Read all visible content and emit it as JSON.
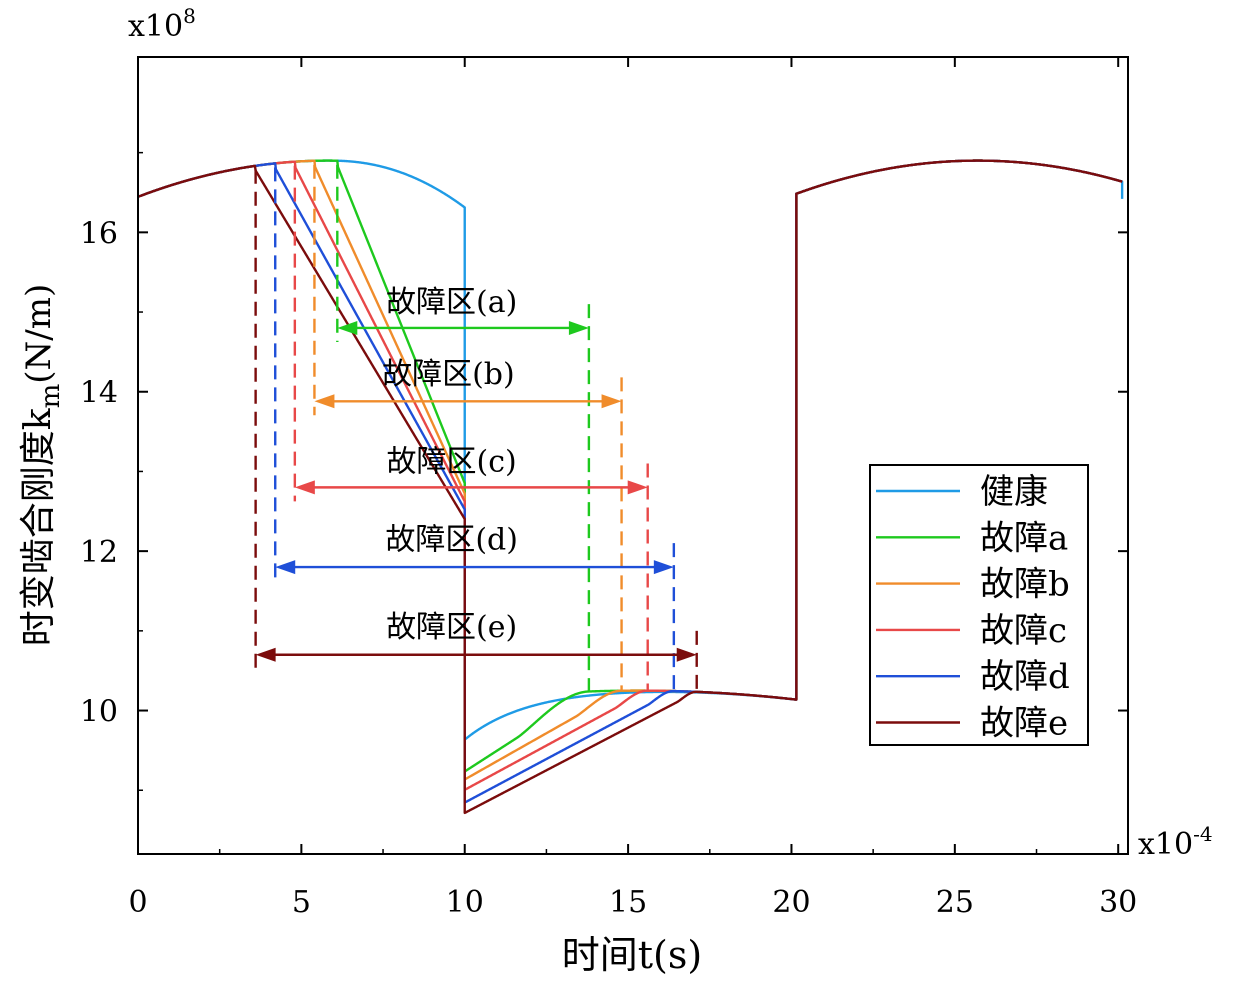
{
  "chart_data": {
    "type": "line",
    "title": "",
    "xlabel": "时间t(s)",
    "ylabel": "时变啮合刚度k",
    "ylabel_sub": "m",
    "ylabel_unit": "(N/m)",
    "x_multiplier_base": "x10",
    "x_multiplier_exp": "-4",
    "y_multiplier_base": "x10",
    "y_multiplier_exp": "8",
    "xlim": [
      0,
      30.3
    ],
    "ylim": [
      8.2,
      18.2
    ],
    "x_ticks": [
      0,
      5,
      10,
      15,
      20,
      25,
      30
    ],
    "x_tick_labels": [
      "0",
      "5",
      "10",
      "15",
      "20",
      "25",
      "30"
    ],
    "y_ticks": [
      10,
      12,
      14,
      16
    ],
    "y_tick_labels": [
      "10",
      "12",
      "14",
      "16"
    ],
    "legend_position": "right-middle",
    "series": [
      {
        "name": "健康",
        "color": "#1f9be6",
        "fault_start": null,
        "fault_end": null,
        "low_drop": 0.48,
        "high_drop": 0.35,
        "recover_width": 0
      },
      {
        "name": "故障a",
        "color": "#1ec91e",
        "fault_start": 6.1,
        "fault_end": 13.8,
        "low_drop": 0.88,
        "high_drop": 0.72,
        "recover_width": 2.2
      },
      {
        "name": "故障b",
        "color": "#f08c2b",
        "fault_start": 5.4,
        "fault_end": 14.8,
        "low_drop": 0.98,
        "high_drop": 0.85,
        "recover_width": 1.4
      },
      {
        "name": "故障c",
        "color": "#e84848",
        "fault_start": 4.8,
        "fault_end": 15.6,
        "low_drop": 1.11,
        "high_drop": 0.95,
        "recover_width": 1.0
      },
      {
        "name": "故障d",
        "color": "#1f4fd8",
        "fault_start": 4.2,
        "fault_end": 16.4,
        "low_drop": 1.27,
        "high_drop": 1.05,
        "recover_width": 0.8
      },
      {
        "name": "故障e",
        "color": "#7b0c0c",
        "fault_start": 3.6,
        "fault_end": 17.1,
        "low_drop": 1.4,
        "high_drop": 1.17,
        "recover_width": 0.6
      }
    ],
    "annotations": [
      {
        "label": "故障区(a)",
        "series": "故障a",
        "x_start": 6.1,
        "x_end": 13.8,
        "arrow_y": 14.8,
        "label_y": 15.1,
        "label_x": 9.6
      },
      {
        "label": "故障区(b)",
        "series": "故障b",
        "x_start": 5.4,
        "x_end": 14.8,
        "arrow_y": 13.88,
        "label_y": 14.2,
        "label_x": 9.5
      },
      {
        "label": "故障区(c)",
        "series": "故障c",
        "x_start": 4.8,
        "x_end": 15.6,
        "arrow_y": 12.8,
        "label_y": 13.1,
        "label_x": 9.6
      },
      {
        "label": "故障区(d)",
        "series": "故障d",
        "x_start": 4.2,
        "x_end": 16.4,
        "arrow_y": 11.8,
        "label_y": 12.12,
        "label_x": 9.6
      },
      {
        "label": "故障区(e)",
        "series": "故障e",
        "x_start": 3.6,
        "x_end": 17.1,
        "arrow_y": 10.7,
        "label_y": 11.02,
        "label_x": 9.6
      }
    ]
  }
}
